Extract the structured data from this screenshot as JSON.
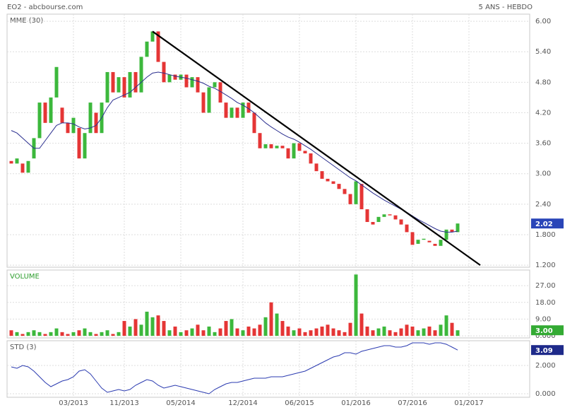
{
  "chart_data": [
    {
      "type": "candlestick",
      "title": "EO2 - abcbourse.com",
      "subtitle": "5 ANS - HEBDO",
      "categories": [
        null,
        null,
        null,
        null,
        null,
        null,
        null,
        null,
        null,
        null,
        null,
        "03/2013",
        null,
        null,
        null,
        null,
        null,
        null,
        null,
        null,
        "11/2013",
        null,
        null,
        null,
        null,
        null,
        null,
        null,
        null,
        null,
        "05/2014",
        null,
        null,
        null,
        null,
        null,
        null,
        null,
        null,
        null,
        null,
        "12/2014",
        null,
        null,
        null,
        null,
        null,
        null,
        null,
        null,
        null,
        "06/2015",
        null,
        null,
        null,
        null,
        null,
        null,
        null,
        null,
        null,
        "01/2016",
        null,
        null,
        null,
        null,
        null,
        null,
        null,
        null,
        null,
        "07/2016",
        null,
        null,
        null,
        null,
        null,
        null,
        null,
        null,
        null,
        "01/2017",
        null,
        null,
        null
      ],
      "open": [
        3.25,
        3.2,
        3.2,
        3.02,
        3.3,
        3.7,
        4.4,
        4.0,
        4.5,
        4.3,
        4.0,
        3.8,
        3.9,
        3.3,
        3.8,
        4.2,
        3.8,
        4.4,
        5.0,
        4.6,
        4.9,
        4.5,
        5.0,
        4.6,
        5.3,
        5.6,
        5.8,
        5.2,
        4.8,
        4.95,
        4.85,
        4.95,
        4.7,
        4.9,
        4.6,
        4.2,
        4.7,
        4.8,
        4.4,
        4.1,
        4.3,
        4.1,
        4.4,
        4.2,
        3.8,
        3.5,
        3.58,
        3.5,
        3.55,
        3.5,
        3.3,
        3.6,
        3.45,
        3.4,
        3.2,
        3.05,
        2.9,
        2.85,
        2.8,
        2.7,
        2.6,
        2.4,
        2.8,
        2.3,
        2.05,
        2.05,
        2.15,
        2.2,
        2.18,
        2.1,
        2.0,
        1.85,
        1.62,
        1.7,
        1.68,
        1.62,
        1.58,
        1.7,
        1.9,
        1.85,
        null,
        null,
        null,
        null,
        null
      ],
      "close": [
        3.2,
        3.3,
        3.02,
        3.25,
        3.7,
        4.4,
        4.0,
        4.5,
        5.1,
        4.0,
        3.8,
        4.1,
        3.3,
        3.8,
        4.4,
        3.8,
        4.4,
        5.0,
        4.6,
        4.9,
        4.5,
        5.0,
        4.6,
        5.3,
        5.6,
        5.8,
        5.2,
        4.8,
        4.95,
        4.85,
        4.95,
        4.7,
        4.9,
        4.6,
        4.2,
        4.7,
        4.8,
        4.4,
        4.1,
        4.3,
        4.1,
        4.4,
        4.2,
        3.8,
        3.5,
        3.58,
        3.5,
        3.55,
        3.5,
        3.3,
        3.6,
        3.45,
        3.4,
        3.2,
        3.05,
        2.9,
        2.85,
        2.8,
        2.7,
        2.6,
        2.4,
        2.85,
        2.3,
        2.05,
        2.0,
        2.15,
        2.2,
        2.18,
        2.1,
        2.0,
        1.85,
        1.6,
        1.7,
        1.72,
        1.65,
        1.58,
        1.7,
        1.9,
        1.85,
        2.02,
        null,
        null,
        null,
        null,
        null
      ],
      "colors": {
        "up": "#3cb83c",
        "down": "#e53535"
      },
      "series": [
        {
          "name": "MME (30)",
          "color": "#2b2f8f",
          "values": [
            3.85,
            3.8,
            3.7,
            3.6,
            3.5,
            3.5,
            3.65,
            3.8,
            3.95,
            4.0,
            4.0,
            3.98,
            3.92,
            3.88,
            3.9,
            3.95,
            4.1,
            4.3,
            4.45,
            4.5,
            4.55,
            4.6,
            4.7,
            4.8,
            4.9,
            4.98,
            5.0,
            4.98,
            4.95,
            4.92,
            4.9,
            4.88,
            4.85,
            4.82,
            4.78,
            4.72,
            4.68,
            4.62,
            4.55,
            4.48,
            4.4,
            4.35,
            4.28,
            4.2,
            4.1,
            4.0,
            3.92,
            3.85,
            3.78,
            3.72,
            3.68,
            3.62,
            3.55,
            3.48,
            3.4,
            3.32,
            3.24,
            3.16,
            3.08,
            3.0,
            2.92,
            2.86,
            2.78,
            2.7,
            2.62,
            2.55,
            2.48,
            2.42,
            2.36,
            2.3,
            2.24,
            2.17,
            2.1,
            2.04,
            1.98,
            1.92,
            1.87,
            1.85,
            1.85,
            1.87,
            null,
            null,
            null,
            null,
            null
          ]
        }
      ],
      "trendline": {
        "from": 25,
        "to": 83,
        "values": [
          5.8,
          1.2
        ],
        "color": "#000000"
      },
      "ylim": [
        1.16,
        6.14
      ],
      "yticks": [
        {
          "value": 6,
          "label": "6.00"
        },
        {
          "value": 5.4,
          "label": "5.40"
        },
        {
          "value": 4.8,
          "label": "4.80"
        },
        {
          "value": 4.2,
          "label": "4.20"
        },
        {
          "value": 3.6,
          "label": "3.60"
        },
        {
          "value": 3,
          "label": "3.00"
        },
        {
          "value": 2.4,
          "label": "2.40"
        },
        {
          "value": 1.8,
          "label": "1.800"
        },
        {
          "value": 1.2,
          "label": "1.200"
        }
      ],
      "grid": true,
      "marker_color": "#2a45b8"
    },
    {
      "type": "bar",
      "label": "VOLUME",
      "values": [
        3,
        2,
        1,
        2,
        3,
        2,
        1,
        2,
        4,
        2,
        1,
        2,
        3,
        4,
        2,
        1,
        2,
        3,
        1,
        2,
        8,
        5,
        9,
        6,
        13,
        10,
        11,
        8,
        3,
        5,
        2,
        3,
        4,
        6,
        3,
        5,
        2,
        4,
        8,
        9,
        4,
        3,
        5,
        4,
        6,
        10,
        18,
        12,
        8,
        5,
        3,
        4,
        2,
        3,
        4,
        5,
        6,
        4,
        3,
        2,
        7,
        33,
        12,
        5,
        3,
        4,
        5,
        3,
        2,
        4,
        6,
        5,
        3,
        4,
        5,
        3,
        6,
        11,
        7,
        3,
        null,
        null,
        null,
        null,
        null
      ],
      "marker": {
        "value": 3,
        "label": "3.00"
      },
      "marker_color": "#33aa33",
      "ylim": [
        -1.1,
        35.4
      ],
      "yticks": [
        {
          "value": 27,
          "label": "27.00"
        },
        {
          "value": 18,
          "label": "18.00"
        },
        {
          "value": 9,
          "label": "9.00"
        },
        {
          "value": 0,
          "label": "0.000"
        }
      ],
      "grid": true
    },
    {
      "type": "line",
      "label": "STD (3)",
      "color": "#2b3bb0",
      "values": [
        1.9,
        1.8,
        2.0,
        1.9,
        1.6,
        1.2,
        0.8,
        0.5,
        0.7,
        0.9,
        1.0,
        1.2,
        1.6,
        1.7,
        1.4,
        0.9,
        0.4,
        0.1,
        0.2,
        0.3,
        0.2,
        0.3,
        0.6,
        0.8,
        1.0,
        0.9,
        0.6,
        0.4,
        0.5,
        0.6,
        0.5,
        0.4,
        0.3,
        0.2,
        0.1,
        0.0,
        0.3,
        0.5,
        0.7,
        0.8,
        0.8,
        0.9,
        1.0,
        1.1,
        1.1,
        1.1,
        1.2,
        1.2,
        1.2,
        1.3,
        1.4,
        1.5,
        1.6,
        1.8,
        2.0,
        2.2,
        2.4,
        2.6,
        2.7,
        2.9,
        2.9,
        2.8,
        3.0,
        3.1,
        3.2,
        3.3,
        3.4,
        3.4,
        3.3,
        3.3,
        3.4,
        3.6,
        3.6,
        3.6,
        3.5,
        3.6,
        3.6,
        3.5,
        3.3,
        3.09,
        null,
        null,
        null,
        null,
        null
      ],
      "marker_color": "#1e2a8a",
      "ylim": [
        -0.25,
        3.75
      ],
      "yticks": [
        {
          "value": 2,
          "label": "2.000"
        },
        {
          "value": 0,
          "label": "0.000"
        }
      ],
      "grid": true
    }
  ]
}
